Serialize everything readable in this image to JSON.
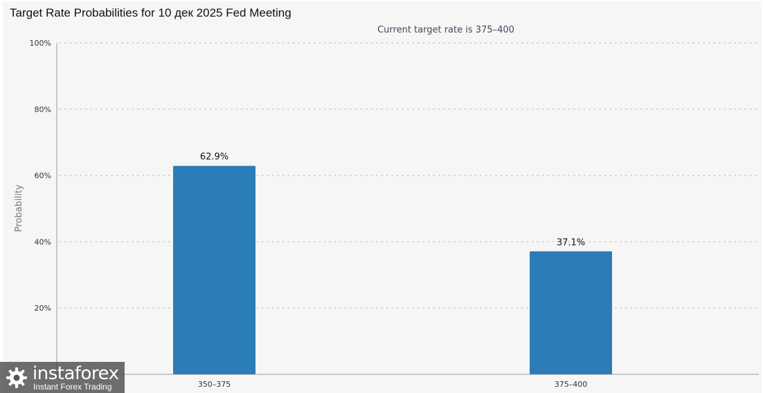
{
  "chart_data": {
    "type": "bar",
    "title": "Target Rate Probabilities for 10 дек 2025 Fed Meeting",
    "subtitle": "Current target rate is 375–400",
    "categories": [
      "350–375",
      "375–400"
    ],
    "values": [
      62.9,
      37.1
    ],
    "data_labels": [
      "62.9%",
      "37.1%"
    ],
    "xlabel": "",
    "ylabel": "Probability",
    "ylim": [
      0,
      100
    ],
    "y_ticks": [
      "20%",
      "40%",
      "60%",
      "80%",
      "100%"
    ],
    "grid": "horizontal dotted",
    "legend": "none",
    "bar_color": "#2a7db6"
  },
  "watermark": {
    "brand": "instaforex",
    "tagline": "Instant Forex Trading",
    "icon": "gear-logo-icon"
  },
  "colors": {
    "background": "#f6f6f6",
    "grid": "#c8c8c8",
    "axis": "#999999"
  }
}
